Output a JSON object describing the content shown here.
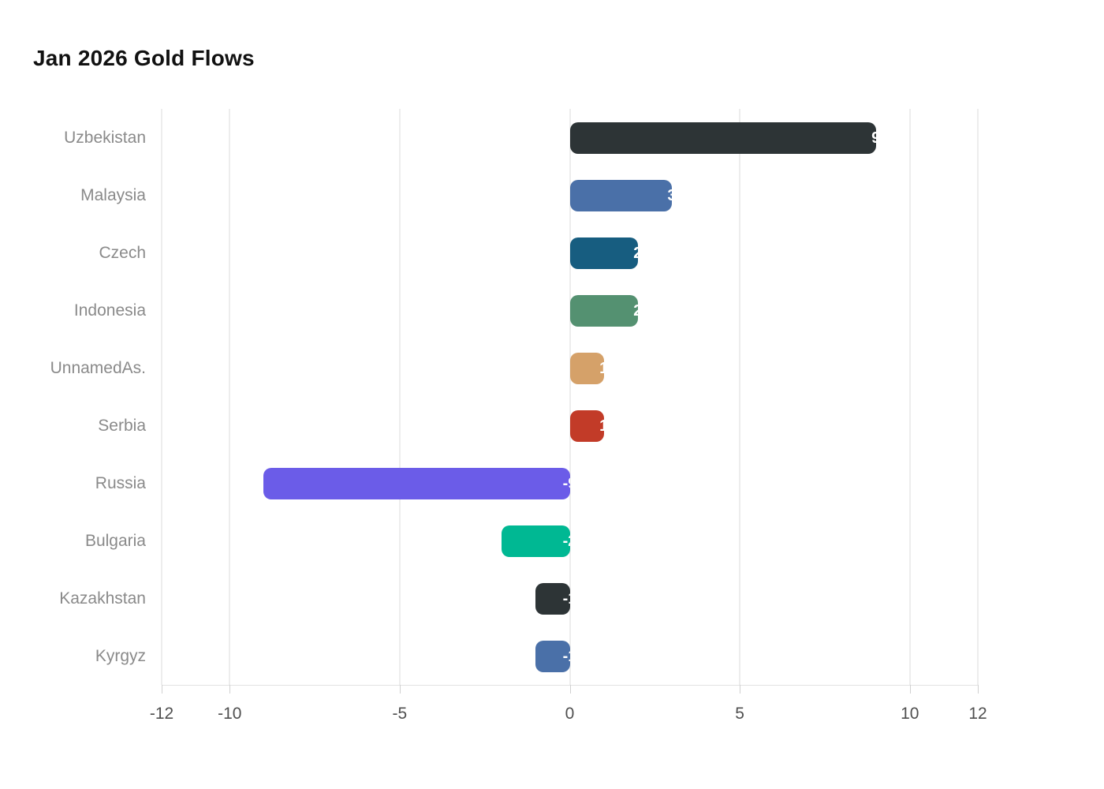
{
  "chart_data": {
    "type": "bar",
    "orientation": "horizontal",
    "title": "Jan 2026 Gold Flows",
    "categories": [
      "Uzbekistan",
      "Malaysia",
      "Czech",
      "Indonesia",
      "UnnamedAs.",
      "Serbia",
      "Russia",
      "Bulgaria",
      "Kazakhstan",
      "Kyrgyz"
    ],
    "values": [
      9,
      3,
      2,
      2,
      1,
      1,
      -9,
      -2,
      -1,
      -1
    ],
    "value_labels": [
      "9",
      "3",
      "2",
      "2",
      "1",
      "1",
      "-9",
      "-2",
      "-1",
      "-1"
    ],
    "bar_colors": [
      "#2d3436",
      "#4a70a8",
      "#175d80",
      "#549171",
      "#d5a169",
      "#c23b28",
      "#6b5ce8",
      "#00b893",
      "#2d3436",
      "#4a70a8"
    ],
    "xlabel": "",
    "ylabel": "",
    "xlim": [
      -12,
      12
    ],
    "xticks": [
      -12,
      -10,
      -5,
      0,
      5,
      10,
      12
    ],
    "xtick_labels": [
      "-12",
      "-10",
      "-5",
      "0",
      "5",
      "10",
      "12"
    ],
    "grid": "vertical",
    "legend": "none"
  },
  "colors": {
    "background": "#ffffff",
    "title_text": "#111111",
    "category_text": "#8a8a8a",
    "tick_text": "#4f4f4f",
    "gridline": "#ededed",
    "axis_line": "#e2e2e2",
    "bar_value_text": "#ffffff"
  }
}
